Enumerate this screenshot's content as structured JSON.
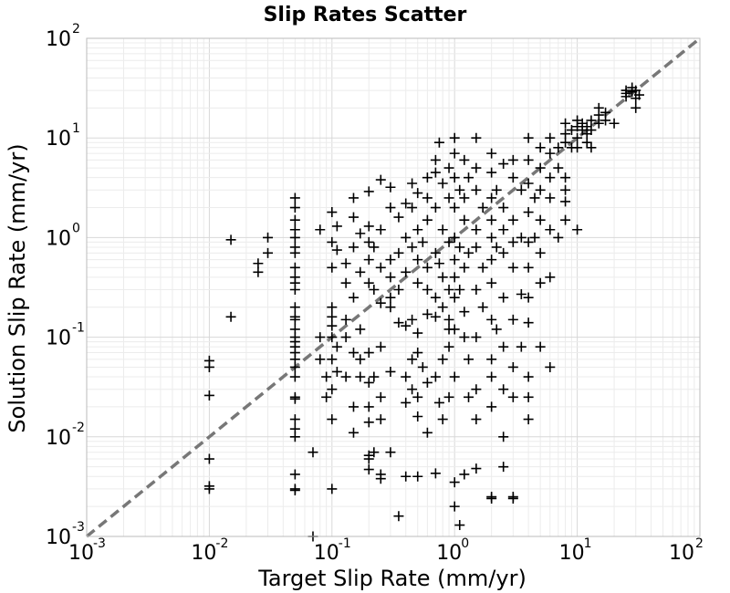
{
  "chart_data": {
    "type": "scatter",
    "title": "Slip Rates Scatter",
    "xlabel": "Target Slip Rate (mm/yr)",
    "ylabel": "Solution Slip Rate (mm/yr)",
    "x_scale": "log",
    "y_scale": "log",
    "xlim": [
      0.001,
      100
    ],
    "ylim": [
      0.001,
      100
    ],
    "grid": true,
    "x_ticks": [
      {
        "base": "10",
        "exp": "-3",
        "value": 0.001
      },
      {
        "base": "10",
        "exp": "-2",
        "value": 0.01
      },
      {
        "base": "10",
        "exp": "-1",
        "value": 0.1
      },
      {
        "base": "10",
        "exp": "0",
        "value": 1
      },
      {
        "base": "10",
        "exp": "1",
        "value": 10
      },
      {
        "base": "10",
        "exp": "2",
        "value": 100
      }
    ],
    "y_ticks": [
      {
        "base": "10",
        "exp": "-3",
        "value": 0.001
      },
      {
        "base": "10",
        "exp": "-2",
        "value": 0.01
      },
      {
        "base": "10",
        "exp": "-1",
        "value": 0.1
      },
      {
        "base": "10",
        "exp": "0",
        "value": 1
      },
      {
        "base": "10",
        "exp": "1",
        "value": 10
      },
      {
        "base": "10",
        "exp": "2",
        "value": 100
      }
    ],
    "reference_line": {
      "style": "dashed",
      "color": "#777777",
      "x": [
        0.001,
        100
      ],
      "y": [
        0.001,
        100
      ]
    },
    "marker": "+",
    "marker_color": "#000000",
    "points": [
      [
        0.01,
        0.058
      ],
      [
        0.01,
        0.05
      ],
      [
        0.01,
        0.026
      ],
      [
        0.01,
        0.006
      ],
      [
        0.01,
        0.0032
      ],
      [
        0.01,
        0.003
      ],
      [
        0.015,
        0.95
      ],
      [
        0.015,
        0.16
      ],
      [
        0.025,
        0.55
      ],
      [
        0.025,
        0.45
      ],
      [
        0.03,
        1.0
      ],
      [
        0.03,
        0.7
      ],
      [
        0.05,
        2.5
      ],
      [
        0.05,
        2.0
      ],
      [
        0.05,
        1.5
      ],
      [
        0.05,
        1.2
      ],
      [
        0.05,
        1.0
      ],
      [
        0.05,
        0.8
      ],
      [
        0.05,
        0.7
      ],
      [
        0.05,
        0.5
      ],
      [
        0.05,
        0.4
      ],
      [
        0.05,
        0.35
      ],
      [
        0.05,
        0.3
      ],
      [
        0.05,
        0.2
      ],
      [
        0.05,
        0.16
      ],
      [
        0.05,
        0.15
      ],
      [
        0.05,
        0.12
      ],
      [
        0.05,
        0.1
      ],
      [
        0.05,
        0.09
      ],
      [
        0.05,
        0.08
      ],
      [
        0.05,
        0.07
      ],
      [
        0.05,
        0.06
      ],
      [
        0.05,
        0.05
      ],
      [
        0.05,
        0.04
      ],
      [
        0.05,
        0.025
      ],
      [
        0.05,
        0.024
      ],
      [
        0.05,
        0.015
      ],
      [
        0.05,
        0.012
      ],
      [
        0.05,
        0.01
      ],
      [
        0.05,
        0.0042
      ],
      [
        0.05,
        0.003
      ],
      [
        0.05,
        0.0029
      ],
      [
        0.07,
        0.007
      ],
      [
        0.07,
        0.001
      ],
      [
        0.08,
        1.2
      ],
      [
        0.08,
        0.1
      ],
      [
        0.08,
        0.06
      ],
      [
        0.09,
        0.04
      ],
      [
        0.09,
        0.025
      ],
      [
        0.1,
        1.8
      ],
      [
        0.1,
        0.9
      ],
      [
        0.1,
        0.5
      ],
      [
        0.1,
        0.2
      ],
      [
        0.1,
        0.16
      ],
      [
        0.1,
        0.13
      ],
      [
        0.1,
        0.1
      ],
      [
        0.1,
        0.06
      ],
      [
        0.1,
        0.03
      ],
      [
        0.1,
        0.015
      ],
      [
        0.1,
        0.003
      ],
      [
        0.11,
        1.3
      ],
      [
        0.11,
        0.75
      ],
      [
        0.11,
        0.08
      ],
      [
        0.11,
        0.045
      ],
      [
        0.13,
        0.55
      ],
      [
        0.13,
        0.35
      ],
      [
        0.13,
        0.15
      ],
      [
        0.13,
        0.1
      ],
      [
        0.13,
        0.04
      ],
      [
        0.15,
        2.5
      ],
      [
        0.15,
        1.6
      ],
      [
        0.15,
        0.8
      ],
      [
        0.15,
        0.25
      ],
      [
        0.15,
        0.07
      ],
      [
        0.15,
        0.02
      ],
      [
        0.15,
        0.011
      ],
      [
        0.17,
        1.1
      ],
      [
        0.17,
        0.45
      ],
      [
        0.17,
        0.12
      ],
      [
        0.17,
        0.06
      ],
      [
        0.17,
        0.04
      ],
      [
        0.2,
        2.9
      ],
      [
        0.2,
        1.3
      ],
      [
        0.2,
        0.9
      ],
      [
        0.2,
        0.6
      ],
      [
        0.2,
        0.35
      ],
      [
        0.2,
        0.07
      ],
      [
        0.2,
        0.035
      ],
      [
        0.2,
        0.02
      ],
      [
        0.2,
        0.014
      ],
      [
        0.2,
        0.0065
      ],
      [
        0.2,
        0.006
      ],
      [
        0.2,
        0.0047
      ],
      [
        0.22,
        0.8
      ],
      [
        0.22,
        0.3
      ],
      [
        0.22,
        0.04
      ],
      [
        0.22,
        0.007
      ],
      [
        0.25,
        3.8
      ],
      [
        0.25,
        1.2
      ],
      [
        0.25,
        0.5
      ],
      [
        0.25,
        0.22
      ],
      [
        0.25,
        0.08
      ],
      [
        0.25,
        0.025
      ],
      [
        0.25,
        0.015
      ],
      [
        0.25,
        0.0042
      ],
      [
        0.25,
        0.0038
      ],
      [
        0.3,
        3.2
      ],
      [
        0.3,
        2.0
      ],
      [
        0.3,
        0.6
      ],
      [
        0.3,
        0.4
      ],
      [
        0.3,
        0.25
      ],
      [
        0.3,
        0.2
      ],
      [
        0.3,
        0.045
      ],
      [
        0.3,
        0.007
      ],
      [
        0.35,
        1.6
      ],
      [
        0.35,
        0.7
      ],
      [
        0.35,
        0.3
      ],
      [
        0.35,
        0.14
      ],
      [
        0.35,
        0.0016
      ],
      [
        0.4,
        2.2
      ],
      [
        0.4,
        1.0
      ],
      [
        0.4,
        0.45
      ],
      [
        0.4,
        0.13
      ],
      [
        0.4,
        0.04
      ],
      [
        0.4,
        0.022
      ],
      [
        0.4,
        0.004
      ],
      [
        0.45,
        3.5
      ],
      [
        0.45,
        2.0
      ],
      [
        0.45,
        0.8
      ],
      [
        0.45,
        0.15
      ],
      [
        0.45,
        0.06
      ],
      [
        0.45,
        0.03
      ],
      [
        0.5,
        2.8
      ],
      [
        0.5,
        1.2
      ],
      [
        0.5,
        0.6
      ],
      [
        0.5,
        0.35
      ],
      [
        0.5,
        0.11
      ],
      [
        0.5,
        0.07
      ],
      [
        0.5,
        0.025
      ],
      [
        0.5,
        0.016
      ],
      [
        0.5,
        0.004
      ],
      [
        0.55,
        0.9
      ],
      [
        0.55,
        0.05
      ],
      [
        0.6,
        4.0
      ],
      [
        0.6,
        2.5
      ],
      [
        0.6,
        1.5
      ],
      [
        0.6,
        0.5
      ],
      [
        0.6,
        0.3
      ],
      [
        0.6,
        0.17
      ],
      [
        0.6,
        0.035
      ],
      [
        0.6,
        0.011
      ],
      [
        0.7,
        6.0
      ],
      [
        0.7,
        4.5
      ],
      [
        0.7,
        2.0
      ],
      [
        0.7,
        0.7
      ],
      [
        0.7,
        0.25
      ],
      [
        0.7,
        0.16
      ],
      [
        0.7,
        0.04
      ],
      [
        0.7,
        0.0043
      ],
      [
        0.75,
        9.0
      ],
      [
        0.75,
        0.55
      ],
      [
        0.75,
        0.022
      ],
      [
        0.8,
        3.5
      ],
      [
        0.8,
        1.2
      ],
      [
        0.8,
        0.4
      ],
      [
        0.8,
        0.2
      ],
      [
        0.8,
        0.06
      ],
      [
        0.8,
        0.015
      ],
      [
        0.9,
        5.0
      ],
      [
        0.9,
        2.5
      ],
      [
        0.9,
        0.9
      ],
      [
        0.9,
        0.3
      ],
      [
        0.9,
        0.15
      ],
      [
        0.9,
        0.12
      ],
      [
        0.9,
        0.08
      ],
      [
        0.9,
        0.025
      ],
      [
        1.0,
        10.0
      ],
      [
        1.0,
        7.0
      ],
      [
        1.0,
        4.0
      ],
      [
        1.0,
        2.0
      ],
      [
        1.0,
        1.0
      ],
      [
        1.0,
        0.6
      ],
      [
        1.0,
        0.4
      ],
      [
        1.0,
        0.25
      ],
      [
        1.0,
        0.12
      ],
      [
        1.0,
        0.04
      ],
      [
        1.0,
        0.0035
      ],
      [
        1.0,
        0.002
      ],
      [
        1.1,
        3.0
      ],
      [
        1.1,
        0.8
      ],
      [
        1.1,
        0.3
      ],
      [
        1.1,
        0.0013
      ],
      [
        1.2,
        6.0
      ],
      [
        1.2,
        2.5
      ],
      [
        1.2,
        1.5
      ],
      [
        1.2,
        0.5
      ],
      [
        1.2,
        0.18
      ],
      [
        1.2,
        0.1
      ],
      [
        1.2,
        0.0042
      ],
      [
        1.3,
        4.0
      ],
      [
        1.3,
        0.7
      ],
      [
        1.3,
        0.06
      ],
      [
        1.3,
        0.025
      ],
      [
        1.5,
        10.0
      ],
      [
        1.5,
        5.0
      ],
      [
        1.5,
        3.0
      ],
      [
        1.5,
        1.2
      ],
      [
        1.5,
        0.8
      ],
      [
        1.5,
        0.3
      ],
      [
        1.5,
        0.1
      ],
      [
        1.5,
        0.03
      ],
      [
        1.5,
        0.015
      ],
      [
        1.5,
        0.0048
      ],
      [
        1.7,
        2.0
      ],
      [
        1.7,
        0.5
      ],
      [
        1.7,
        0.2
      ],
      [
        2.0,
        7.0
      ],
      [
        2.0,
        4.5
      ],
      [
        2.0,
        2.5
      ],
      [
        2.0,
        1.5
      ],
      [
        2.0,
        1.0
      ],
      [
        2.0,
        0.6
      ],
      [
        2.0,
        0.35
      ],
      [
        2.0,
        0.15
      ],
      [
        2.0,
        0.06
      ],
      [
        2.0,
        0.04
      ],
      [
        2.0,
        0.02
      ],
      [
        2.0,
        0.0025
      ],
      [
        2.0,
        0.0024
      ],
      [
        2.2,
        3.0
      ],
      [
        2.2,
        0.8
      ],
      [
        2.2,
        0.12
      ],
      [
        2.5,
        5.5
      ],
      [
        2.5,
        2.0
      ],
      [
        2.5,
        1.2
      ],
      [
        2.5,
        0.7
      ],
      [
        2.5,
        0.25
      ],
      [
        2.5,
        0.08
      ],
      [
        2.5,
        0.03
      ],
      [
        2.5,
        0.01
      ],
      [
        2.5,
        0.005
      ],
      [
        3.0,
        6.0
      ],
      [
        3.0,
        4.0
      ],
      [
        3.0,
        1.5
      ],
      [
        3.0,
        0.9
      ],
      [
        3.0,
        0.5
      ],
      [
        3.0,
        0.15
      ],
      [
        3.0,
        0.05
      ],
      [
        3.0,
        0.025
      ],
      [
        3.0,
        0.0025
      ],
      [
        3.0,
        0.0024
      ],
      [
        3.5,
        3.0
      ],
      [
        3.5,
        1.0
      ],
      [
        3.5,
        0.27
      ],
      [
        3.5,
        0.08
      ],
      [
        4.0,
        10.0
      ],
      [
        4.0,
        6.0
      ],
      [
        4.0,
        3.5
      ],
      [
        4.0,
        1.8
      ],
      [
        4.0,
        0.9
      ],
      [
        4.0,
        0.5
      ],
      [
        4.0,
        0.25
      ],
      [
        4.0,
        0.14
      ],
      [
        4.0,
        0.04
      ],
      [
        4.0,
        0.025
      ],
      [
        4.0,
        0.015
      ],
      [
        4.5,
        2.5
      ],
      [
        4.5,
        1.0
      ],
      [
        5.0,
        8.0
      ],
      [
        5.0,
        5.0
      ],
      [
        5.0,
        3.0
      ],
      [
        5.0,
        1.5
      ],
      [
        5.0,
        0.7
      ],
      [
        5.0,
        0.35
      ],
      [
        5.0,
        0.08
      ],
      [
        6.0,
        10.0
      ],
      [
        6.0,
        7.0
      ],
      [
        6.0,
        4.0
      ],
      [
        6.0,
        2.5
      ],
      [
        6.0,
        1.2
      ],
      [
        6.0,
        0.4
      ],
      [
        6.0,
        0.05
      ],
      [
        7.0,
        8.0
      ],
      [
        7.0,
        5.0
      ],
      [
        7.0,
        1.0
      ],
      [
        8.0,
        14.0
      ],
      [
        8.0,
        11.0
      ],
      [
        8.0,
        9.0
      ],
      [
        8.0,
        4.0
      ],
      [
        8.0,
        3.0
      ],
      [
        8.0,
        1.5
      ],
      [
        8.0,
        2.3
      ],
      [
        9.0,
        12.0
      ],
      [
        9.0,
        8.0
      ],
      [
        10.0,
        15.0
      ],
      [
        10.0,
        13.0
      ],
      [
        10.0,
        10.0
      ],
      [
        10.0,
        8.0
      ],
      [
        10.0,
        1.2
      ],
      [
        11.0,
        14.0
      ],
      [
        11.0,
        12.0
      ],
      [
        12.0,
        13.0
      ],
      [
        12.0,
        11.0
      ],
      [
        12.0,
        9.0
      ],
      [
        13.0,
        15.0
      ],
      [
        13.0,
        12.0
      ],
      [
        13.0,
        8.0
      ],
      [
        15.0,
        20.0
      ],
      [
        15.0,
        17.0
      ],
      [
        15.0,
        14.0
      ],
      [
        17.0,
        18.0
      ],
      [
        17.0,
        15.0
      ],
      [
        20.0,
        14.0
      ],
      [
        25.0,
        30.0
      ],
      [
        25.0,
        28.0
      ],
      [
        25.0,
        26.0
      ],
      [
        28.0,
        32.0
      ],
      [
        28.0,
        29.0
      ],
      [
        30.0,
        30.0
      ],
      [
        30.0,
        25.0
      ],
      [
        30.0,
        20.0
      ],
      [
        32.0,
        27.0
      ]
    ]
  }
}
